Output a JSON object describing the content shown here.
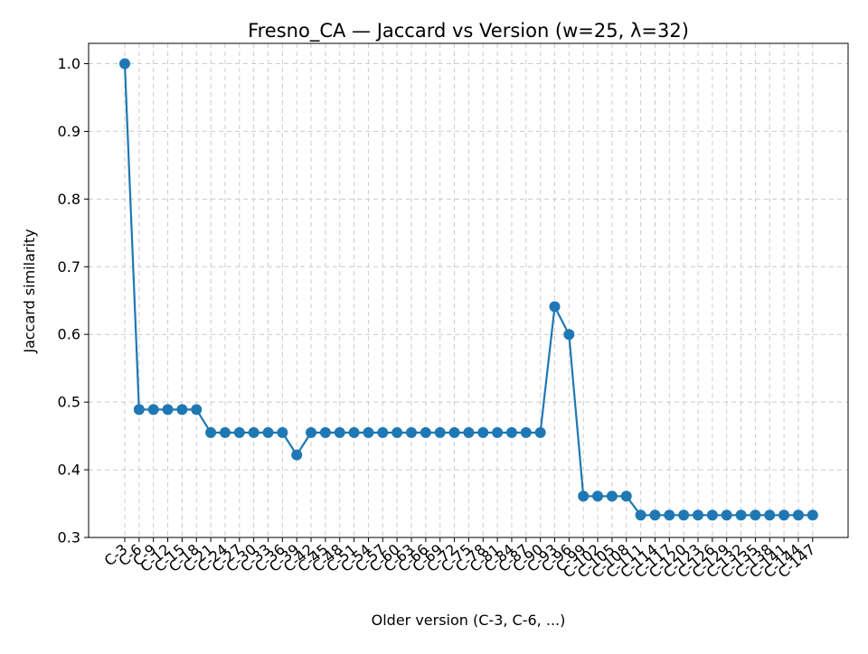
{
  "chart_data": {
    "type": "line",
    "title": "Fresno_CA — Jaccard vs Version (w=25, λ=32)",
    "xlabel": "Older version (C-3, C-6, ...)",
    "ylabel": "Jaccard similarity",
    "ylim": [
      0.3,
      1.03
    ],
    "yticks": [
      "0.3",
      "0.4",
      "0.5",
      "0.6",
      "0.7",
      "0.8",
      "0.9",
      "1.0"
    ],
    "grid": true,
    "series_color": "#1f77b4",
    "categories": [
      "C-3",
      "C-6",
      "C-9",
      "C-12",
      "C-15",
      "C-18",
      "C-21",
      "C-24",
      "C-27",
      "C-30",
      "C-33",
      "C-36",
      "C-39",
      "C-42",
      "C-45",
      "C-48",
      "C-51",
      "C-54",
      "C-57",
      "C-60",
      "C-63",
      "C-66",
      "C-69",
      "C-72",
      "C-75",
      "C-78",
      "C-81",
      "C-84",
      "C-87",
      "C-90",
      "C-93",
      "C-96",
      "C-99",
      "C-102",
      "C-105",
      "C-108",
      "C-111",
      "C-114",
      "C-117",
      "C-120",
      "C-123",
      "C-126",
      "C-129",
      "C-132",
      "C-135",
      "C-138",
      "C-141",
      "C-144",
      "C-147"
    ],
    "values": [
      1.0,
      0.489,
      0.489,
      0.489,
      0.489,
      0.489,
      0.455,
      0.455,
      0.455,
      0.455,
      0.455,
      0.455,
      0.422,
      0.455,
      0.455,
      0.455,
      0.455,
      0.455,
      0.455,
      0.455,
      0.455,
      0.455,
      0.455,
      0.455,
      0.455,
      0.455,
      0.455,
      0.455,
      0.455,
      0.455,
      0.641,
      0.6,
      0.361,
      0.361,
      0.361,
      0.361,
      0.333,
      0.333,
      0.333,
      0.333,
      0.333,
      0.333,
      0.333,
      0.333,
      0.333,
      0.333,
      0.333,
      0.333,
      0.333
    ]
  }
}
